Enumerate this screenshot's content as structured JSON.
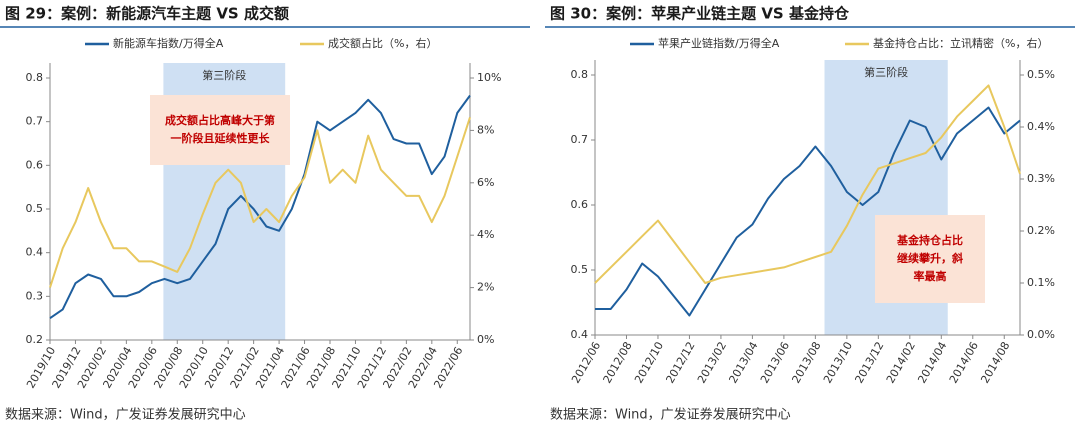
{
  "chart_data": [
    {
      "type": "line",
      "title": "图 29：案例：新能源汽车主题 VS 成交额",
      "source": "数据来源：Wind，广发证券发展研究中心",
      "categories": [
        "2019/10",
        null,
        "2019/12",
        null,
        "2020/02",
        null,
        "2020/04",
        null,
        "2020/06",
        null,
        "2020/08",
        null,
        "2020/10",
        null,
        "2020/12",
        null,
        "2021/02",
        null,
        "2021/04",
        null,
        "2021/06",
        null,
        "2021/08",
        null,
        "2021/10",
        null,
        "2021/12",
        null,
        "2022/02",
        null,
        "2022/04",
        null,
        "2022/06",
        null
      ],
      "series": [
        {
          "name": "新能源车指数/万得全A",
          "color": "#1f5f9e",
          "values": [
            0.25,
            0.27,
            0.33,
            0.35,
            0.34,
            0.3,
            0.3,
            0.31,
            0.33,
            0.34,
            0.33,
            0.34,
            0.38,
            0.42,
            0.5,
            0.53,
            0.5,
            0.46,
            0.45,
            0.5,
            0.58,
            0.7,
            0.68,
            0.7,
            0.72,
            0.75,
            0.72,
            0.66,
            0.65,
            0.65,
            0.58,
            0.62,
            0.72,
            0.76
          ]
        },
        {
          "name": "成交额占比（%，右）",
          "color": "#e8c85e",
          "axis": "y2",
          "values": [
            2,
            3.5,
            4.5,
            5.8,
            4.5,
            3.5,
            3.5,
            3.0,
            3.0,
            2.8,
            2.6,
            3.5,
            4.8,
            6.0,
            6.5,
            6.0,
            4.5,
            5.0,
            4.5,
            5.5,
            6.2,
            8.0,
            6.0,
            6.5,
            6.0,
            7.8,
            6.5,
            6.0,
            5.5,
            5.5,
            4.5,
            5.5,
            7.0,
            8.5
          ]
        }
      ],
      "ylim": [
        0.2,
        0.8
      ],
      "yticks": [
        0.2,
        0.3,
        0.4,
        0.5,
        0.6,
        0.7,
        0.8
      ],
      "y2lim": [
        0,
        10
      ],
      "y2ticks": [
        {
          "value": 0,
          "label": "0%"
        },
        {
          "value": 2,
          "label": "2%"
        },
        {
          "value": 4,
          "label": "4%"
        },
        {
          "value": 6,
          "label": "6%"
        },
        {
          "value": 8,
          "label": "8%"
        },
        {
          "value": 10,
          "label": "10%"
        }
      ],
      "shade_label": "第三阶段",
      "annotation": [
        "成交额占比高峰大于第",
        "一阶段且延续性更长"
      ]
    },
    {
      "type": "line",
      "title": "图 30：案例：苹果产业链主题 VS 基金持仓",
      "source": "数据来源：Wind，广发证券发展研究中心",
      "categories": [
        "2012/06",
        null,
        "2012/08",
        null,
        "2012/10",
        null,
        "2012/12",
        null,
        "2013/02",
        null,
        "2013/04",
        null,
        "2013/06",
        null,
        "2013/08",
        null,
        "2013/10",
        null,
        "2013/12",
        null,
        "2014/02",
        null,
        "2014/04",
        null,
        "2014/06",
        null,
        "2014/08",
        null
      ],
      "series": [
        {
          "name": "苹果产业链指数/万得全A",
          "color": "#1f5f9e",
          "values": [
            0.44,
            0.44,
            0.47,
            0.51,
            0.49,
            0.46,
            0.43,
            0.47,
            0.51,
            0.55,
            0.57,
            0.61,
            0.64,
            0.66,
            0.69,
            0.66,
            0.62,
            0.6,
            0.62,
            0.68,
            0.73,
            0.72,
            0.67,
            0.71,
            0.73,
            0.75,
            0.71,
            0.73
          ]
        },
        {
          "name": "基金持仓占比：立讯精密（%，右）",
          "color": "#e8c85e",
          "axis": "y2",
          "values": [
            0.1,
            0.13,
            0.16,
            0.19,
            0.22,
            0.18,
            0.14,
            0.1,
            0.11,
            0.115,
            0.12,
            0.125,
            0.13,
            0.14,
            0.15,
            0.16,
            0.21,
            0.27,
            0.32,
            0.33,
            0.34,
            0.35,
            0.38,
            0.42,
            0.45,
            0.48,
            0.4,
            0.31
          ]
        }
      ],
      "ylim": [
        0.4,
        0.8
      ],
      "yticks": [
        0.4,
        0.5,
        0.6,
        0.7,
        0.8
      ],
      "y2lim": [
        0,
        0.5
      ],
      "y2ticks": [
        {
          "value": 0,
          "label": "0.0%"
        },
        {
          "value": 0.1,
          "label": "0.1%"
        },
        {
          "value": 0.2,
          "label": "0.2%"
        },
        {
          "value": 0.3,
          "label": "0.3%"
        },
        {
          "value": 0.4,
          "label": "0.4%"
        },
        {
          "value": 0.5,
          "label": "0.5%"
        }
      ],
      "shade_label": "第三阶段",
      "annotation": [
        "基金持仓占比",
        "继续攀升，斜",
        "率最高"
      ]
    }
  ]
}
